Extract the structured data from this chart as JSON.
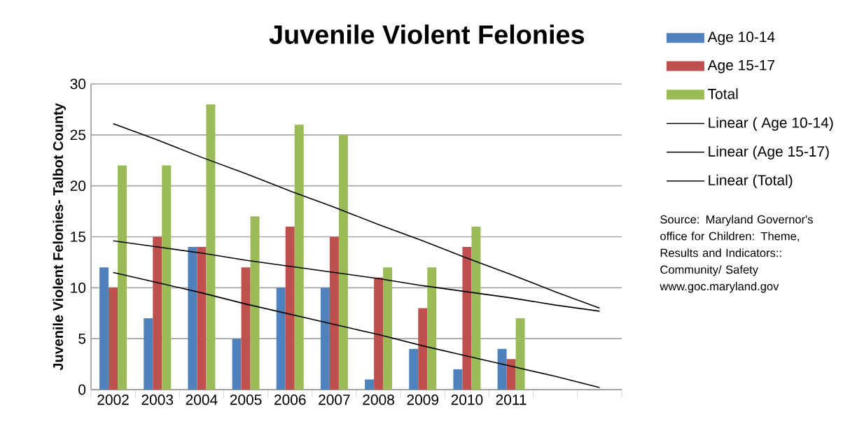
{
  "chart_data": {
    "type": "bar",
    "title": "Juvenile Violent Felonies",
    "ylabel": "Juvenile Violent Felonies- Talbot County",
    "categories": [
      "2002",
      "2003",
      "2004",
      "2005",
      "2006",
      "2007",
      "2008",
      "2009",
      "2010",
      "2011",
      null,
      null
    ],
    "series": [
      {
        "name": "Age 10-14",
        "color": "#4f81bd",
        "values": [
          12,
          7,
          14,
          5,
          10,
          10,
          1,
          4,
          2,
          4,
          null,
          null
        ]
      },
      {
        "name": "Age 15-17",
        "color": "#c0504d",
        "values": [
          10,
          15,
          14,
          12,
          16,
          15,
          11,
          8,
          14,
          3,
          null,
          null
        ]
      },
      {
        "name": "Total",
        "color": "#9bbb59",
        "values": [
          22,
          22,
          28,
          17,
          26,
          25,
          12,
          12,
          16,
          7,
          null,
          null
        ]
      },
      {
        "name": "Linear ( Age 10-14)",
        "type": "line",
        "color": "#000000",
        "values": [
          11.5,
          10.5,
          9.5,
          8.4,
          7.4,
          6.4,
          5.4,
          4.3,
          3.3,
          2.3,
          1.3,
          0.2
        ]
      },
      {
        "name": "Linear (Age 15-17)",
        "type": "line",
        "color": "#000000",
        "values": [
          14.6,
          14.0,
          13.4,
          12.7,
          12.1,
          11.5,
          10.9,
          10.2,
          9.6,
          9.0,
          8.3,
          7.7
        ]
      },
      {
        "name": "Linear (Total)",
        "type": "line",
        "color": "#000000",
        "values": [
          26.1,
          24.5,
          22.8,
          21.2,
          19.5,
          17.9,
          16.2,
          14.6,
          12.9,
          11.3,
          9.6,
          8.0
        ]
      }
    ],
    "ylim": [
      0,
      30
    ],
    "yticks": [
      0,
      5,
      10,
      15,
      20,
      25,
      30
    ],
    "grid": "y",
    "legend": "right",
    "annotations": [
      "Source: Maryland Governor's office for Children: Theme, Results and Indicators:: Community/ Safety www.goc.maryland.gov"
    ]
  }
}
